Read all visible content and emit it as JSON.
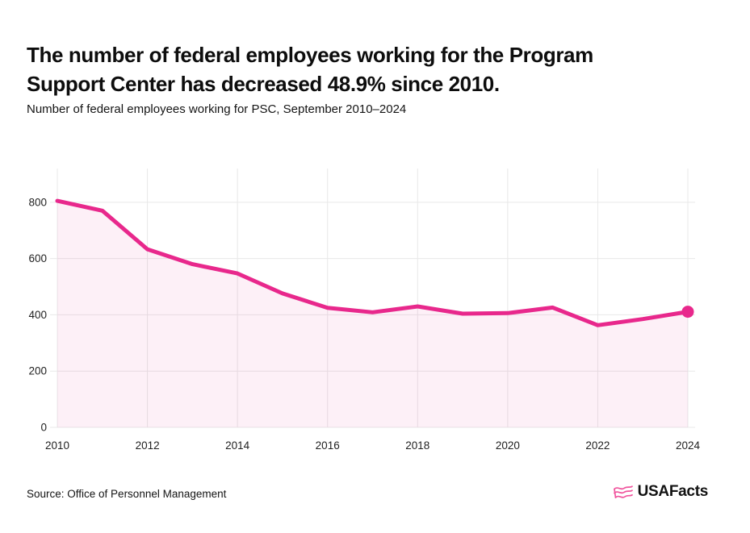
{
  "page": {
    "title": "The number of federal employees working for the Program Support Center has decreased 48.9% since 2010.",
    "title_lines": [
      "The number of federal employees working for the Program",
      "Support Center has decreased 48.9% since 2010."
    ],
    "subtitle": "Number of federal employees working for PSC, September 2010–2024",
    "source": "Source: Office of Personnel Management",
    "logo_text": "USAFacts"
  },
  "colors": {
    "line": "#E8288C",
    "area": "rgba(232,40,140,0.07)",
    "grid": "#E8E8E8",
    "axis_text": "#1F1F1F",
    "logo_pink": "#F0559E"
  },
  "chart_data": {
    "type": "area",
    "title": "Number of federal employees working for PSC, September 2010–2024",
    "series_name": "Federal employees working for the Program Support Center",
    "x": [
      2010,
      2011,
      2012,
      2013,
      2014,
      2015,
      2016,
      2017,
      2018,
      2019,
      2020,
      2021,
      2022,
      2023,
      2024
    ],
    "values": [
      805,
      770,
      633,
      580,
      547,
      476,
      425,
      409,
      430,
      404,
      406,
      426,
      363,
      385,
      411
    ],
    "xlabel": "",
    "ylabel": "",
    "xticks": [
      2010,
      2012,
      2014,
      2016,
      2018,
      2020,
      2022,
      2024
    ],
    "yticks": [
      0,
      200,
      400,
      600,
      800
    ],
    "ylim": [
      0,
      920
    ],
    "grid": true,
    "legend": false,
    "end_point_marker": true,
    "pct_change_since_2010": "-48.9%"
  }
}
